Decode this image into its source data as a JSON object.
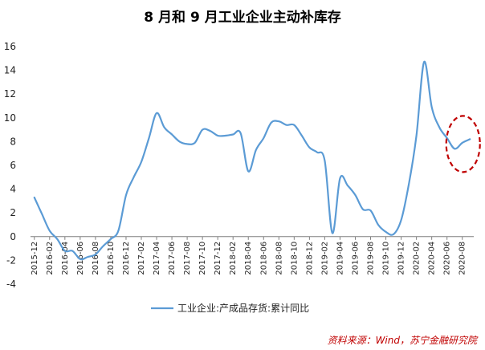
{
  "colors": {
    "line": "#5B9BD5",
    "annotation": "#C00000",
    "zero_line": "#808080"
  },
  "source_text": "资料来源：Wind，苏宁金融研究院",
  "chart_data": {
    "type": "line",
    "title": "8 月和 9 月工业企业主动补库存",
    "xlabel": "",
    "ylabel": "",
    "ylim": [
      -4,
      16
    ],
    "yticks": [
      -4,
      -2,
      0,
      2,
      4,
      6,
      8,
      10,
      12,
      14,
      16
    ],
    "grid": false,
    "legend_position": "bottom",
    "x_tick_labels": [
      "2015-12",
      "2016-02",
      "2016-04",
      "2016-06",
      "2016-08",
      "2016-10",
      "2016-12",
      "2017-02",
      "2017-04",
      "2017-06",
      "2017-08",
      "2017-10",
      "2017-12",
      "2018-02",
      "2018-04",
      "2018-06",
      "2018-08",
      "2018-10",
      "2018-12",
      "2019-02",
      "2019-04",
      "2019-06",
      "2019-08",
      "2019-10",
      "2019-12",
      "2020-02",
      "2020-04",
      "2020-06",
      "2020-08"
    ],
    "series": [
      {
        "name": "工业企业:产成品存货:累计同比",
        "x": [
          "2015-12",
          "2016-01",
          "2016-02",
          "2016-03",
          "2016-04",
          "2016-05",
          "2016-06",
          "2016-07",
          "2016-08",
          "2016-09",
          "2016-10",
          "2016-11",
          "2016-12",
          "2017-01",
          "2017-02",
          "2017-03",
          "2017-04",
          "2017-05",
          "2017-06",
          "2017-07",
          "2017-08",
          "2017-09",
          "2017-10",
          "2017-11",
          "2017-12",
          "2018-01",
          "2018-02",
          "2018-03",
          "2018-04",
          "2018-05",
          "2018-06",
          "2018-07",
          "2018-08",
          "2018-09",
          "2018-10",
          "2018-11",
          "2018-12",
          "2019-01",
          "2019-02",
          "2019-03",
          "2019-04",
          "2019-05",
          "2019-06",
          "2019-07",
          "2019-08",
          "2019-09",
          "2019-10",
          "2019-11",
          "2019-12",
          "2020-01",
          "2020-02",
          "2020-03",
          "2020-04",
          "2020-05",
          "2020-06",
          "2020-07",
          "2020-08",
          "2020-09"
        ],
        "values": [
          3.3,
          1.9,
          0.5,
          -0.2,
          -1.2,
          -1.2,
          -1.9,
          -1.7,
          -1.5,
          -0.8,
          -0.2,
          0.5,
          3.5,
          5.0,
          6.3,
          8.3,
          10.4,
          9.2,
          8.6,
          8.0,
          7.8,
          7.9,
          9.0,
          8.9,
          8.5,
          8.5,
          8.6,
          8.7,
          5.5,
          7.3,
          8.3,
          9.6,
          9.7,
          9.4,
          9.4,
          8.5,
          7.5,
          7.1,
          6.4,
          0.3,
          4.9,
          4.3,
          3.5,
          2.3,
          2.2,
          1.0,
          0.4,
          0.2,
          1.4,
          4.4,
          8.5,
          14.7,
          10.9,
          9.2,
          8.3,
          7.4,
          7.9,
          8.2
        ]
      }
    ],
    "annotation": {
      "shape": "dashed-ellipse",
      "around": [
        "2020-07",
        "2020-08",
        "2020-09"
      ]
    }
  }
}
